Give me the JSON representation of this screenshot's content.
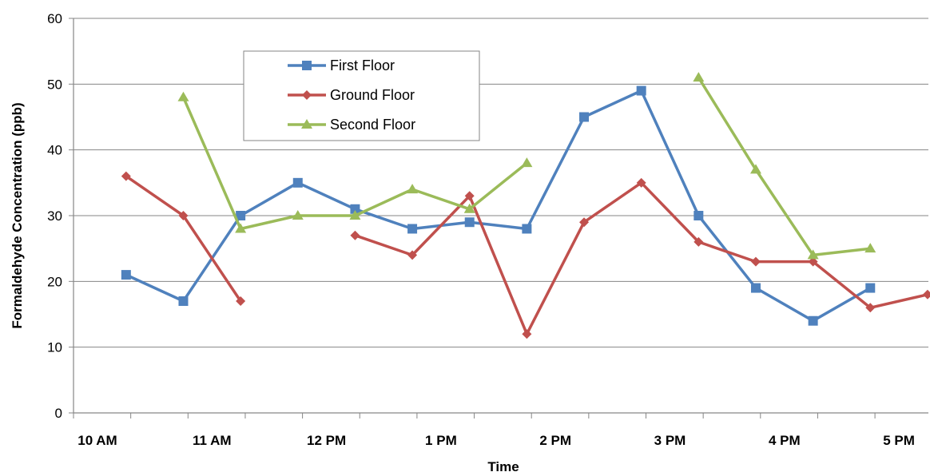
{
  "chart_data": {
    "type": "line",
    "xlabel": "Time",
    "ylabel": "Formaldehyde Concentration (ppb)",
    "ylim": [
      0,
      60
    ],
    "yticks": [
      0,
      10,
      20,
      30,
      40,
      50,
      60
    ],
    "xlim": [
      10,
      17
    ],
    "xtick_labels": [
      "10 AM",
      "11 AM",
      "12 PM",
      "1 PM",
      "2 PM",
      "3 PM",
      "4 PM",
      "5 PM"
    ],
    "grid": "horizontal",
    "legend_position": "top-left",
    "series": [
      {
        "name": "First Floor",
        "color": "#4F81BD",
        "marker": "square",
        "segments": [
          [
            [
              10.25,
              21
            ],
            [
              10.75,
              17
            ],
            [
              11.25,
              30
            ],
            [
              11.75,
              35
            ],
            [
              12.25,
              31
            ],
            [
              12.75,
              28
            ],
            [
              13.25,
              29
            ],
            [
              13.75,
              28
            ],
            [
              14.25,
              45
            ],
            [
              14.75,
              49
            ],
            [
              15.25,
              30
            ],
            [
              15.75,
              19
            ],
            [
              16.25,
              14
            ],
            [
              16.75,
              19
            ]
          ]
        ]
      },
      {
        "name": "Ground Floor",
        "color": "#C0504D",
        "marker": "diamond",
        "segments": [
          [
            [
              10.25,
              36
            ],
            [
              10.75,
              30
            ],
            [
              11.25,
              17
            ]
          ],
          [
            [
              12.25,
              27
            ],
            [
              12.75,
              24
            ],
            [
              13.25,
              33
            ],
            [
              13.75,
              12
            ],
            [
              14.25,
              29
            ],
            [
              14.75,
              35
            ],
            [
              15.25,
              26
            ],
            [
              15.75,
              23
            ],
            [
              16.25,
              23
            ],
            [
              16.75,
              16
            ],
            [
              17.25,
              18
            ]
          ]
        ]
      },
      {
        "name": "Second Floor",
        "color": "#9BBB59",
        "marker": "triangle",
        "segments": [
          [
            [
              10.75,
              48
            ],
            [
              11.25,
              28
            ],
            [
              11.75,
              30
            ],
            [
              12.25,
              30
            ],
            [
              12.75,
              34
            ],
            [
              13.25,
              31
            ],
            [
              13.75,
              38
            ]
          ],
          [
            [
              15.25,
              51
            ],
            [
              15.75,
              37
            ],
            [
              16.25,
              24
            ],
            [
              16.75,
              25
            ]
          ]
        ]
      }
    ]
  }
}
